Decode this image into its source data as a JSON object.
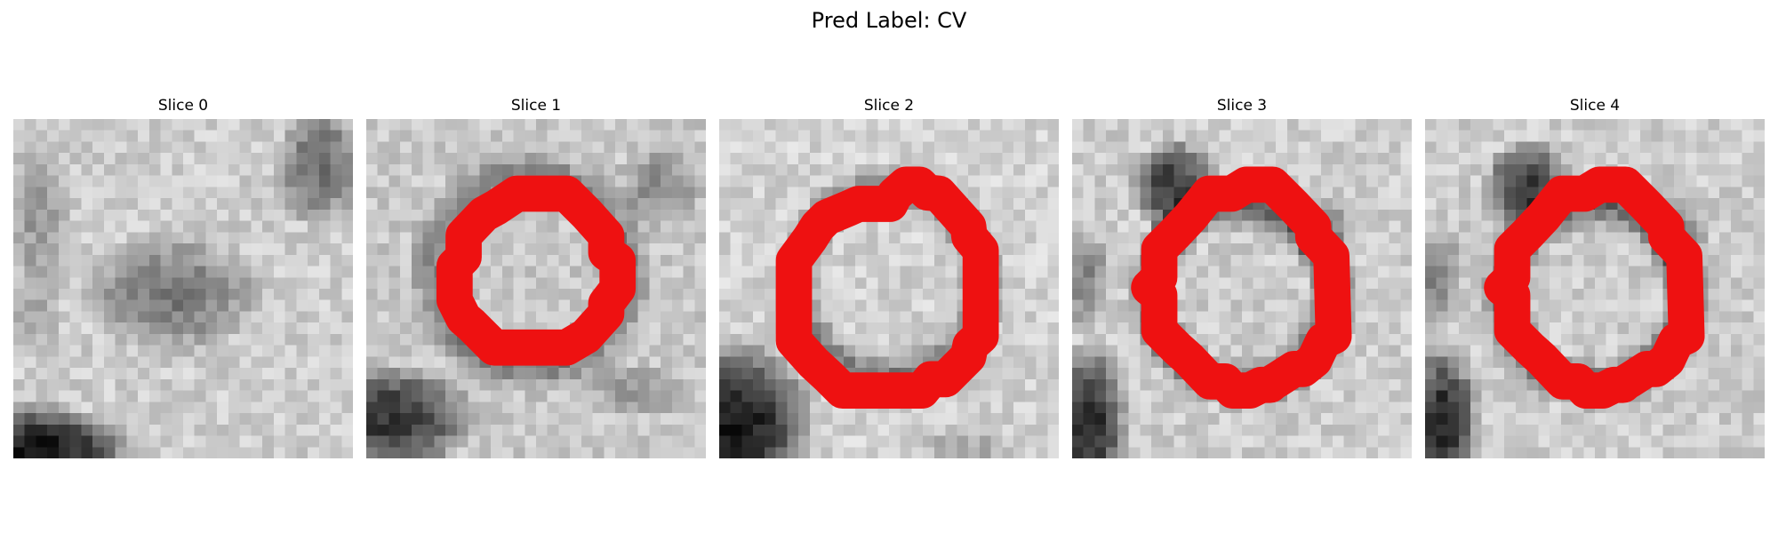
{
  "figure": {
    "title": "Pred Label: CV"
  },
  "colors": {
    "contour": "#ee1111",
    "background": "#ffffff"
  },
  "slices": [
    {
      "label": "Slice 0",
      "has_contour": false
    },
    {
      "label": "Slice 1",
      "has_contour": true
    },
    {
      "label": "Slice 2",
      "has_contour": true
    },
    {
      "label": "Slice 3",
      "has_contour": true
    },
    {
      "label": "Slice 4",
      "has_contour": true
    }
  ]
}
